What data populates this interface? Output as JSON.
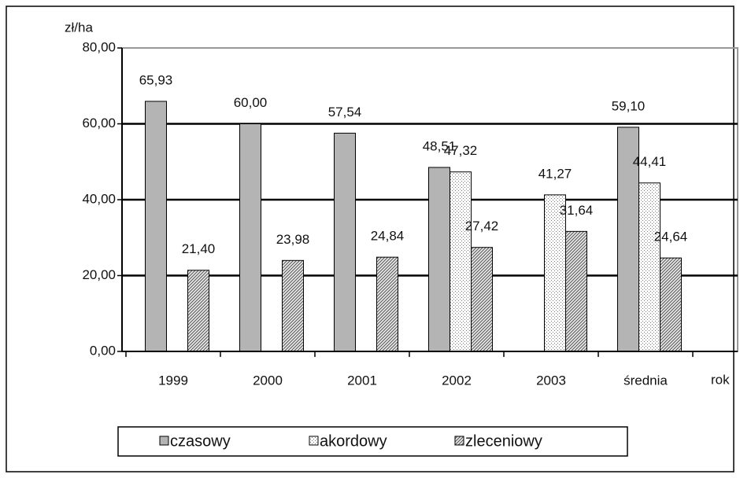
{
  "chart_data": {
    "type": "bar",
    "y_label": "zł/ha",
    "x_label": "rok",
    "categories": [
      "1999",
      "2000",
      "2001",
      "2002",
      "2003",
      "średnia"
    ],
    "series": [
      {
        "name": "czasowy",
        "color": "#b4b4b4",
        "values": [
          65.93,
          60.0,
          57.54,
          48.51,
          null,
          59.1
        ],
        "value_labels": [
          "65,93",
          "60,00",
          "57,54",
          "48,51",
          null,
          "59,10"
        ]
      },
      {
        "name": "akordowy",
        "color": "#ffffff",
        "values": [
          null,
          null,
          null,
          47.32,
          41.27,
          44.41
        ],
        "value_labels": [
          null,
          null,
          null,
          "47,32",
          "41,27",
          "44,41"
        ]
      },
      {
        "name": "zleceniowy",
        "color": "#e6e6e6",
        "values": [
          21.4,
          23.98,
          24.84,
          27.42,
          31.64,
          24.64
        ],
        "value_labels": [
          "21,40",
          "23,98",
          "24,84",
          "27,42",
          "31,64",
          "24,64"
        ]
      }
    ],
    "ylim": [
      0,
      80
    ],
    "yticks": [
      {
        "value": 0,
        "label": "0,00"
      },
      {
        "value": 20,
        "label": "20,00"
      },
      {
        "value": 40,
        "label": "40,00"
      },
      {
        "value": 60,
        "label": "60,00"
      },
      {
        "value": 80,
        "label": "80,00"
      }
    ],
    "grid": true,
    "legend": "bottom"
  }
}
